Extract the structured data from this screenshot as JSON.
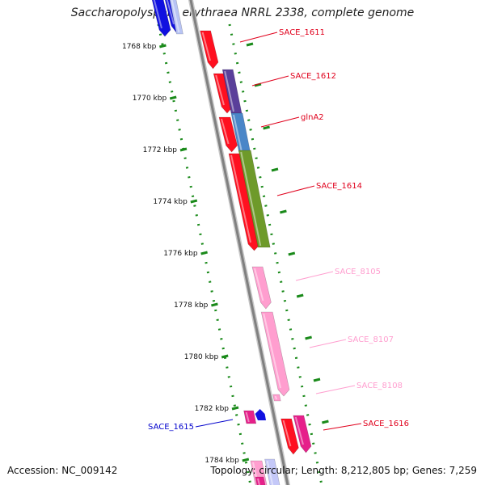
{
  "title": "Saccharopolyspora erythraea NRRL 2338, complete genome",
  "footer": {
    "accession": "Accession: NC_009142",
    "stats": "Topology: circular; Length: 8,212,805 bp; Genes: 7,259"
  },
  "diagram": {
    "ticks": [
      {
        "label": "1768 kbp"
      },
      {
        "label": "1770 kbp"
      },
      {
        "label": "1772 kbp"
      },
      {
        "label": "1774 kbp"
      },
      {
        "label": "1776 kbp"
      },
      {
        "label": "1778 kbp"
      },
      {
        "label": "1780 kbp"
      },
      {
        "label": "1782 kbp"
      },
      {
        "label": "1784 kbp"
      }
    ],
    "genes": [
      {
        "name": "SACE_1611",
        "color": "#e0001c"
      },
      {
        "name": "SACE_1612",
        "color": "#e0001c"
      },
      {
        "name": "glnA2",
        "color": "#e0001c"
      },
      {
        "name": "SACE_1614",
        "color": "#e0001c"
      },
      {
        "name": "SACE_8105",
        "color": "#ff9ecf"
      },
      {
        "name": "SACE_8107",
        "color": "#ff9ecf"
      },
      {
        "name": "SACE_8108",
        "color": "#ff9ecf"
      },
      {
        "name": "SACE_1616",
        "color": "#e0001c"
      },
      {
        "name": "SACE_1615",
        "color": "#0000cc"
      }
    ],
    "feature_colors": {
      "cds_red": "#ff1020",
      "purple": "#5a3f9a",
      "steel_blue": "#4a86c8",
      "olive": "#6e9a2a",
      "pink": "#ff9ecf",
      "magenta": "#e6208a",
      "blue": "#1010e0",
      "backbone": "#808080",
      "tick_green": "#1a8a1a"
    }
  }
}
